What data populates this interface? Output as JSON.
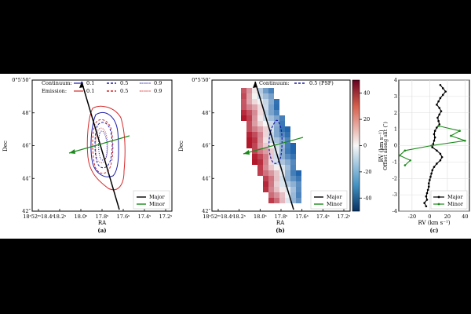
{
  "chart_data": [
    {
      "type": "scatter",
      "panel_label": "(a)",
      "xlabel": "RA",
      "ylabel": "Dec",
      "xticks": [
        "18ˢ52ᵐ18.4ˢ",
        "18.2ˢ",
        "18.0ˢ",
        "17.8ˢ",
        "17.6ˢ",
        "17.4ˢ",
        "17.2ˢ"
      ],
      "yticks": [
        "0°5′50″",
        "48″",
        "46″",
        "44″",
        "42″"
      ],
      "legend_top": {
        "continuum_label": "Continuum:",
        "emission_label": "Emission:",
        "continuum_levels": [
          "0.1",
          "0.5",
          "0.9"
        ],
        "emission_levels": [
          "0.1",
          "0.5",
          "0.9"
        ]
      },
      "legend_bottom": [
        "Major",
        "Minor"
      ],
      "colors": {
        "continuum": "#1a1aaa",
        "emission": "#d62728",
        "major": "#000000",
        "minor": "#1a8a1a"
      }
    },
    {
      "type": "heatmap",
      "panel_label": "(b)",
      "xlabel": "RA",
      "ylabel": "Dec",
      "xticks": [
        "18ˢ52ᵐ18.4ˢ",
        "18.2ˢ",
        "18.0ˢ",
        "17.8ˢ",
        "17.6ˢ",
        "17.4ˢ",
        "17.2ˢ"
      ],
      "yticks": [
        "0°5′50″",
        "48″",
        "46″",
        "44″",
        "42″"
      ],
      "legend_top": {
        "continuum_label": "Continuum:",
        "psf_label": "0.5 (PSF)"
      },
      "legend_bottom": [
        "Major",
        "Minor"
      ],
      "colorbar": {
        "label": "RV (km s⁻¹)",
        "ticks": [
          40,
          20,
          0,
          -20,
          -40
        ],
        "range": [
          -50,
          50
        ]
      },
      "colors": {
        "positive": "#b2182b",
        "negative": "#2166ac",
        "major": "#000000",
        "minor": "#1a8a1a"
      }
    },
    {
      "type": "line",
      "panel_label": "(c)",
      "xlabel": "RV (km s⁻¹)",
      "ylabel": "Offset along slit (″)",
      "xlim": [
        -35,
        45
      ],
      "ylim": [
        -4,
        4
      ],
      "xticks": [
        -20,
        0,
        20,
        40
      ],
      "yticks": [
        4,
        3,
        2,
        1,
        0,
        -1,
        -2,
        -3,
        -4
      ],
      "grid": true,
      "legend": "bottom-right",
      "series": [
        {
          "name": "Major",
          "color": "#000000",
          "y": [
            3.7,
            3.5,
            3.3,
            3.1,
            2.9,
            2.7,
            2.5,
            2.3,
            2.1,
            1.9,
            1.7,
            1.5,
            1.3,
            1.1,
            0.9,
            0.7,
            0.5,
            0.3,
            0.1,
            -0.1,
            -0.3,
            -0.5,
            -0.7,
            -0.9,
            -1.1,
            -1.3,
            -1.5,
            -1.7,
            -1.9,
            -2.1,
            -2.3,
            -2.5,
            -2.7,
            -2.9,
            -3.1,
            -3.3,
            -3.5,
            -3.7
          ],
          "x": [
            12,
            15,
            18,
            15,
            12,
            10,
            8,
            11,
            13,
            11,
            9,
            10,
            11,
            8,
            6,
            5,
            6,
            5,
            4,
            3,
            8,
            12,
            14,
            12,
            8,
            5,
            3,
            2,
            1,
            0,
            -1,
            -1,
            -2,
            -3,
            -4,
            -3,
            -6,
            -4
          ]
        },
        {
          "name": "Minor",
          "color": "#1a8a1a",
          "y": [
            1.2,
            0.9,
            0.6,
            0.3,
            0.0,
            -0.3,
            -0.6,
            -0.9,
            -1.2
          ],
          "x": [
            10,
            34,
            24,
            40,
            2,
            -28,
            -34,
            -22,
            -28
          ]
        }
      ]
    }
  ]
}
